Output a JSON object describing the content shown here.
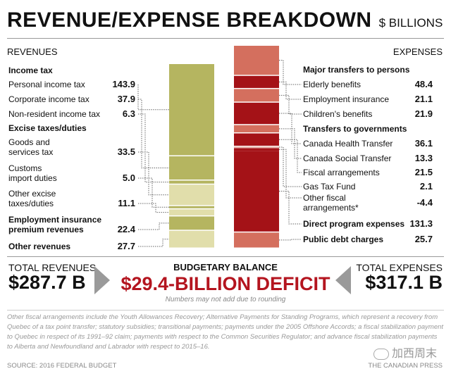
{
  "title": "REVENUE/EXPENSE BREAKDOWN",
  "unit": "$ BILLIONS",
  "sections": {
    "revenues": "REVENUES",
    "expenses": "EXPENSES"
  },
  "colors": {
    "rev_dark": "#b5b560",
    "rev_light": "#e1deab",
    "exp_dark": "#a41217",
    "exp_light": "#d46f5e",
    "deficit": "#b4151f",
    "arrow": "#9a9a9a"
  },
  "chart_data": [
    {
      "type": "bar",
      "title": "REVENUES",
      "categories": [
        "Personal income tax",
        "Corporate income tax",
        "Non-resident income tax",
        "Goods and services tax",
        "Customs import duties",
        "Other excise taxes/duties",
        "Employment insurance premium revenues",
        "Other revenues"
      ],
      "groups": [
        "Income tax",
        "Income tax",
        "Income tax",
        "Excise taxes/duties",
        "Excise taxes/duties",
        "Excise taxes/duties",
        "",
        ""
      ],
      "values": [
        143.9,
        37.9,
        6.3,
        33.5,
        5.0,
        11.1,
        22.4,
        27.7
      ],
      "total": 287.7
    },
    {
      "type": "bar",
      "title": "EXPENSES",
      "categories": [
        "Elderly benefits",
        "Employment insurance",
        "Children's benefits",
        "Canada Health Transfer",
        "Canada Social Transfer",
        "Fiscal arrangements",
        "Gas Tax Fund",
        "Other fiscal arrangements*",
        "Direct program expenses",
        "Public debt charges"
      ],
      "groups": [
        "Major transfers to persons",
        "Major transfers to persons",
        "Major transfers to persons",
        "Transfers to governments",
        "Transfers to governments",
        "Transfers to governments",
        "Transfers to governments",
        "Transfers to governments",
        "",
        ""
      ],
      "values": [
        48.4,
        21.1,
        21.9,
        36.1,
        13.3,
        21.5,
        2.1,
        -4.4,
        131.3,
        25.7
      ],
      "total": 317.1
    }
  ],
  "revenue_rows": [
    {
      "kind": "header",
      "label": "Income tax"
    },
    {
      "kind": "item",
      "label": "Personal income tax",
      "value": "143.9"
    },
    {
      "kind": "item",
      "label": "Corporate income tax",
      "value": "37.9"
    },
    {
      "kind": "item",
      "label": "Non-resident income tax",
      "value": "6.3"
    },
    {
      "kind": "header",
      "label": "Excise taxes/duties"
    },
    {
      "kind": "item",
      "label": "Goods and\nservices tax",
      "value": "33.5"
    },
    {
      "kind": "item",
      "label": "Customs\nimport duties",
      "value": "5.0"
    },
    {
      "kind": "item",
      "label": "Other excise\ntaxes/duties",
      "value": "11.1"
    },
    {
      "kind": "itemb",
      "label": "Employment insurance\npremium revenues",
      "value": "22.4"
    },
    {
      "kind": "itemb",
      "label": "Other revenues",
      "value": "27.7"
    }
  ],
  "expense_rows": [
    {
      "kind": "header",
      "label": "Major transfers to persons"
    },
    {
      "kind": "item",
      "label": "Elderly benefits",
      "value": "48.4"
    },
    {
      "kind": "item",
      "label": "Employment insurance",
      "value": "21.1"
    },
    {
      "kind": "item",
      "label": "Children's benefits",
      "value": "21.9"
    },
    {
      "kind": "header",
      "label": "Transfers to governments"
    },
    {
      "kind": "item",
      "label": "Canada Health Transfer",
      "value": "36.1"
    },
    {
      "kind": "item",
      "label": "Canada Social Transfer",
      "value": "13.3"
    },
    {
      "kind": "item",
      "label": "Fiscal arrangements",
      "value": "21.5"
    },
    {
      "kind": "item",
      "label": "Gas Tax Fund",
      "value": "2.1"
    },
    {
      "kind": "item",
      "label": "Other fiscal\narrangements*",
      "value": "-4.4"
    },
    {
      "kind": "itemb",
      "label": "Direct program expenses",
      "value": "131.3"
    },
    {
      "kind": "itemb",
      "label": "Public debt charges",
      "value": "25.7"
    }
  ],
  "totals": {
    "revenues_label": "TOTAL REVENUES",
    "revenues_value": "$287.7 B",
    "expenses_label": "TOTAL EXPENSES",
    "expenses_value": "$317.1 B"
  },
  "balance": {
    "label": "BUDGETARY BALANCE",
    "value": "$29.4-BILLION DEFICIT",
    "note": "Numbers may not add due to rounding"
  },
  "footnote": "Other fiscal arrangements include the Youth Allowances Recovery; Alternative Payments for Standing Programs, which represent a recovery from Quebec of a tax point transfer; statutory subsidies; transitional payments; payments under the 2005 Offshore Accords; a fiscal stabilization payment to Quebec in respect of its 1991–92 claim; payments with respect to the Common Securities Regulator; and advance fiscal stabilization payments to Alberta and Newfoundland and Labrador with respect to 2015–16.",
  "source": "SOURCE: 2016 FEDERAL BUDGET",
  "credit": "THE CANADIAN PRESS",
  "watermark": "加西周末"
}
